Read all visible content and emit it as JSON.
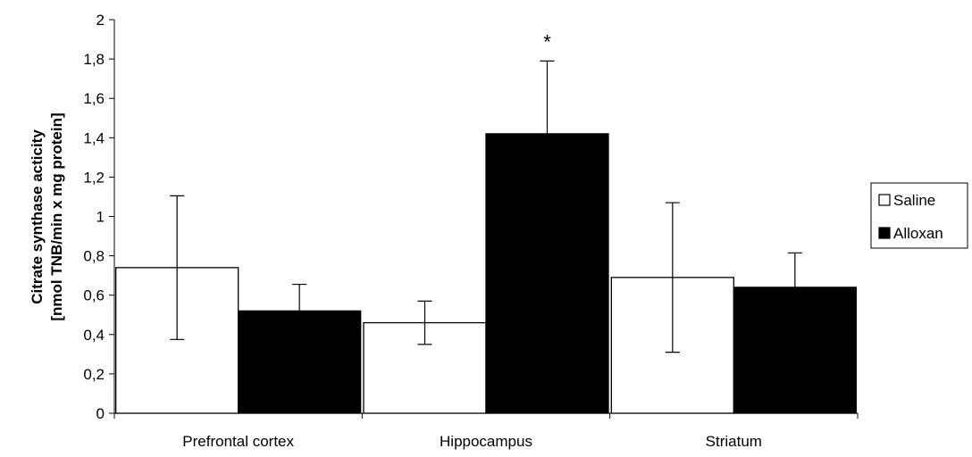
{
  "chart_data": {
    "type": "bar",
    "title": "",
    "xlabel": "",
    "ylabel": [
      "Citrate synthase acticity",
      "[nmol TNB/min x mg protein]"
    ],
    "ylim": [
      0,
      2
    ],
    "yticks": [
      0,
      0.2,
      0.4,
      0.6,
      0.8,
      1,
      1.2,
      1.4,
      1.6,
      1.8,
      2
    ],
    "ytick_labels": [
      "0",
      "0,2",
      "0,4",
      "0,6",
      "0,8",
      "1",
      "1,2",
      "1,4",
      "1,6",
      "1,8",
      "2"
    ],
    "categories": [
      "Prefrontal cortex",
      "Hippocampus",
      "Striatum"
    ],
    "series": [
      {
        "name": "Saline",
        "color": "#ffffff",
        "values": [
          0.74,
          0.46,
          0.69
        ],
        "errors": [
          0.365,
          0.11,
          0.38
        ]
      },
      {
        "name": "Alloxan",
        "color": "#000000",
        "values": [
          0.52,
          1.42,
          0.64
        ],
        "errors": [
          0.135,
          0.37,
          0.175
        ]
      }
    ],
    "annotations": [
      {
        "text": "*",
        "category": "Hippocampus",
        "series": "Alloxan"
      }
    ],
    "legend": {
      "position": "right",
      "entries": [
        "Saline",
        "Alloxan"
      ]
    },
    "grid": false
  }
}
